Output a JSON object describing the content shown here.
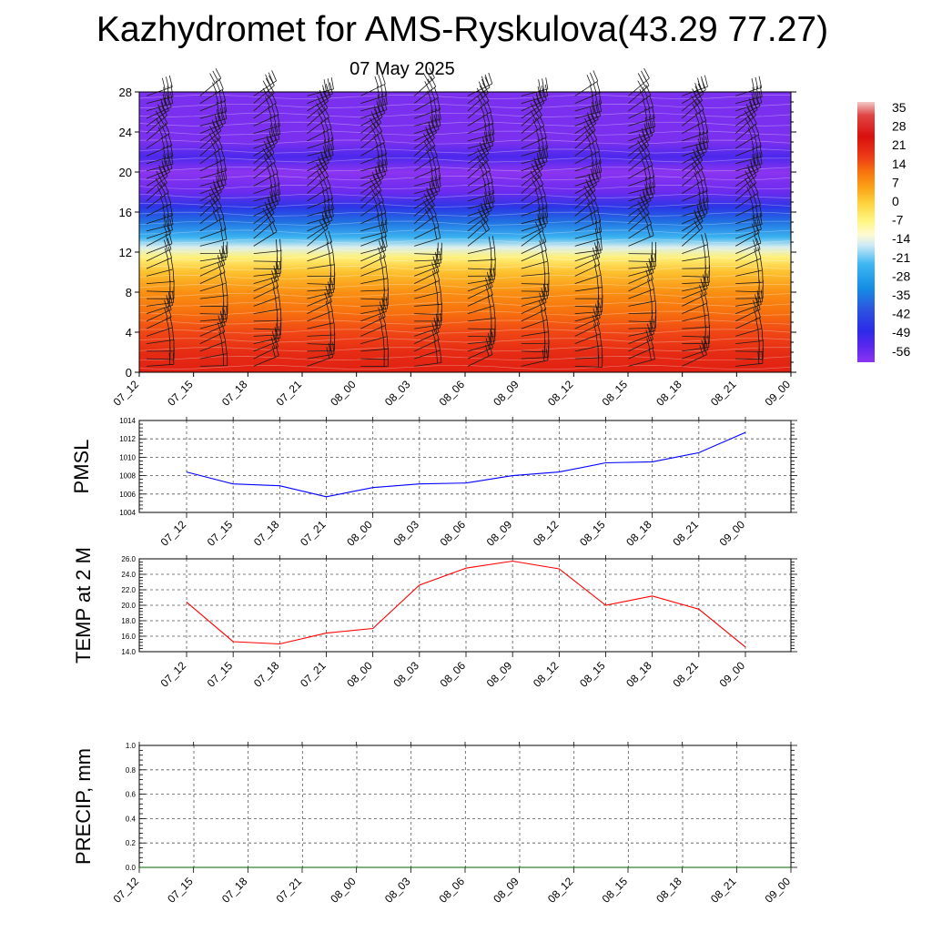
{
  "header": {
    "title": "Kazhydromet for AMS-Ryskulova(43.29 77.27)",
    "date": "07 May 2025"
  },
  "chart_data": [
    {
      "type": "heatmap",
      "description": "time-height cross-section of temperature with wind barbs",
      "x_ticks": [
        "07_12",
        "07_15",
        "07_18",
        "07_21",
        "08_00",
        "08_03",
        "08_06",
        "08_09",
        "08_12",
        "08_15",
        "08_18",
        "08_21",
        "09_00"
      ],
      "y_ticks": [
        0,
        4,
        8,
        12,
        16,
        20,
        24,
        28
      ],
      "ylim": [
        0,
        28
      ],
      "temperature_profile": [
        {
          "height": 0,
          "value": 22
        },
        {
          "height": 2,
          "value": 20
        },
        {
          "height": 4,
          "value": 16
        },
        {
          "height": 6,
          "value": 12
        },
        {
          "height": 8,
          "value": 8
        },
        {
          "height": 10,
          "value": 2
        },
        {
          "height": 11.5,
          "value": -6
        },
        {
          "height": 12.5,
          "value": -15
        },
        {
          "height": 13.5,
          "value": -24
        },
        {
          "height": 15,
          "value": -36
        },
        {
          "height": 16.5,
          "value": -46
        },
        {
          "height": 18,
          "value": -56
        },
        {
          "height": 20,
          "value": -60
        },
        {
          "height": 21.5,
          "value": -52
        },
        {
          "height": 23,
          "value": -58
        },
        {
          "height": 28,
          "value": -58
        }
      ],
      "colorbar": {
        "labels": [
          35,
          28,
          21,
          14,
          7,
          0,
          -7,
          -14,
          -21,
          -28,
          -35,
          -42,
          -49,
          -56
        ],
        "stops": [
          {
            "value": 38,
            "color": "#f2c9c9"
          },
          {
            "value": 33,
            "color": "#e04545"
          },
          {
            "value": 25,
            "color": "#d90f0f"
          },
          {
            "value": 17,
            "color": "#ee3d17"
          },
          {
            "value": 12,
            "color": "#f7710e"
          },
          {
            "value": 6,
            "color": "#fca016"
          },
          {
            "value": 0,
            "color": "#fdd23c"
          },
          {
            "value": -7,
            "color": "#fff685"
          },
          {
            "value": -12,
            "color": "#fffbd2"
          },
          {
            "value": -16,
            "color": "#cde9f7"
          },
          {
            "value": -23,
            "color": "#3fb7f2"
          },
          {
            "value": -32,
            "color": "#158ee4"
          },
          {
            "value": -40,
            "color": "#2d55e0"
          },
          {
            "value": -48,
            "color": "#2c2be8"
          },
          {
            "value": -54,
            "color": "#5a27ee"
          },
          {
            "value": -60,
            "color": "#8c34f0"
          }
        ]
      }
    },
    {
      "type": "line",
      "ylabel": "PMSL",
      "x": [
        "07_12",
        "07_15",
        "07_18",
        "07_21",
        "08_00",
        "08_03",
        "08_06",
        "08_09",
        "08_12",
        "08_15",
        "08_18",
        "08_21",
        "09_00"
      ],
      "values": [
        1008.4,
        1007.1,
        1006.9,
        1005.7,
        1006.7,
        1007.1,
        1007.2,
        1008.0,
        1008.4,
        1009.4,
        1009.5,
        1010.5,
        1012.7
      ],
      "ylim": [
        1004,
        1014
      ],
      "y_ticks": [
        "1004",
        "1006",
        "1008",
        "1010",
        "1012",
        "1014"
      ],
      "color": "#0000ff"
    },
    {
      "type": "line",
      "ylabel": "TEMP at 2 M",
      "x": [
        "07_12",
        "07_15",
        "07_18",
        "07_21",
        "08_00",
        "08_03",
        "08_06",
        "08_09",
        "08_12",
        "08_15",
        "08_18",
        "08_21",
        "09_00"
      ],
      "values": [
        20.4,
        15.3,
        15.0,
        16.4,
        17.0,
        22.6,
        24.8,
        25.7,
        24.7,
        20.0,
        21.2,
        19.5,
        14.6
      ],
      "ylim": [
        14,
        26
      ],
      "y_ticks": [
        "14.0",
        "16.0",
        "18.0",
        "20.0",
        "22.0",
        "24.0",
        "26.0"
      ],
      "color": "#ff0000"
    },
    {
      "type": "line",
      "ylabel": "PRECIP, mm",
      "x_ticks": [
        "07_12",
        "07_15",
        "07_18",
        "07_21",
        "08_00",
        "08_03",
        "08_06",
        "08_09",
        "08_12",
        "08_15",
        "08_18",
        "08_21",
        "09_00"
      ],
      "values": [
        0,
        0,
        0,
        0,
        0,
        0,
        0,
        0,
        0,
        0,
        0,
        0,
        0
      ],
      "ylim": [
        0,
        1
      ],
      "y_ticks": [
        "0.0",
        "0.2",
        "0.4",
        "0.6",
        "0.8",
        "1.0"
      ],
      "color": "#006400"
    }
  ]
}
